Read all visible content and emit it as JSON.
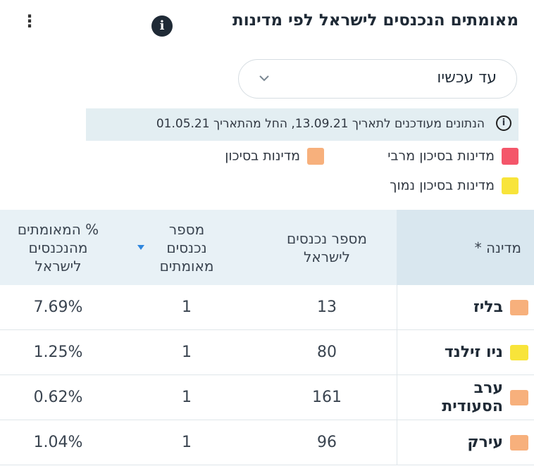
{
  "header": {
    "title": "מאומתים הנכנסים לישראל לפי מדינות"
  },
  "filter": {
    "selected": "עד עכשיו"
  },
  "note": "הנתונים מעודכנים לתאריך 13.09.21, החל מהתאריך 01.05.21",
  "legend": [
    {
      "label": "מדינות בסיכון מרבי",
      "color": "#f4566a"
    },
    {
      "label": "מדינות בסיכון",
      "color": "#f7b07c"
    },
    {
      "label": "מדינות בסיכון נמוך",
      "color": "#f8e43a"
    }
  ],
  "table": {
    "columns": [
      "מדינה *",
      "מספר נכנסים לישראל",
      "מספר נכנסים מאומתים",
      "% המאומתים מהנכנסים לישראל"
    ],
    "rows": [
      {
        "country": "בליז",
        "color": "#f7b07c",
        "entrants": "13",
        "confirmed": "1",
        "percent": "7.69%"
      },
      {
        "country": "ניו זילנד",
        "color": "#f8e43a",
        "entrants": "80",
        "confirmed": "1",
        "percent": "1.25%"
      },
      {
        "country": "ערב הסעודית",
        "color": "#f7b07c",
        "entrants": "161",
        "confirmed": "1",
        "percent": "0.62%"
      },
      {
        "country": "עירק",
        "color": "#f7b07c",
        "entrants": "96",
        "confirmed": "1",
        "percent": "1.04%"
      }
    ]
  }
}
